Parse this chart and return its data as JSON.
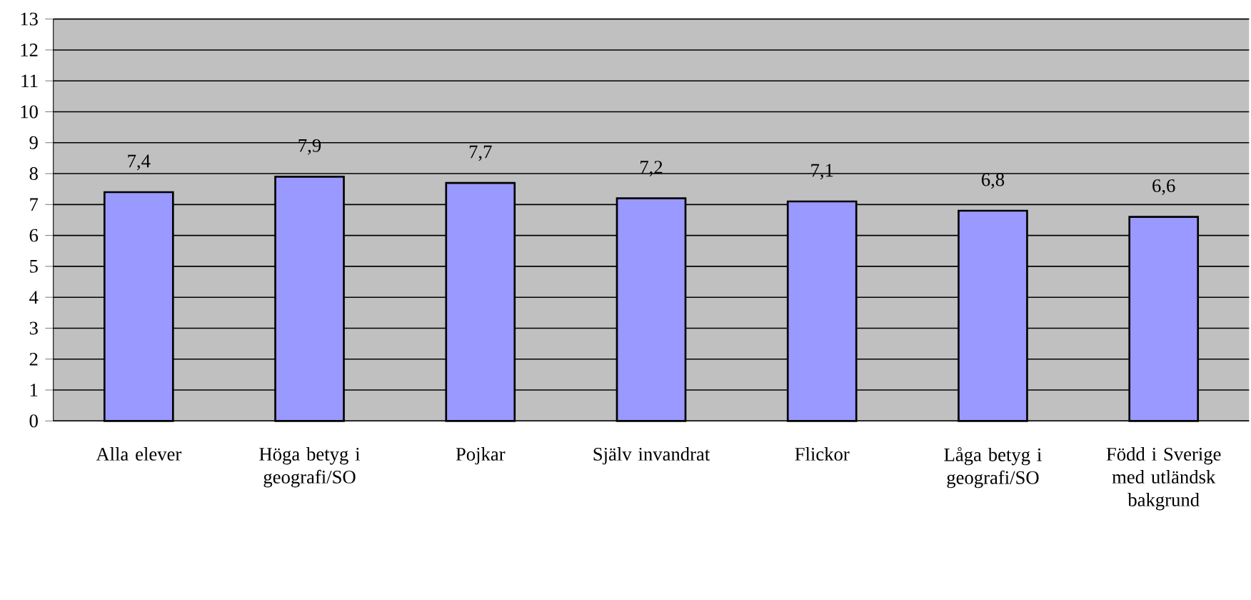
{
  "chart_data": {
    "type": "bar",
    "categories": [
      "Alla elever",
      "Höga betyg i geografi/SO",
      "Pojkar",
      "Själv invandrat",
      "Flickor",
      "Låga betyg i geografi/SO",
      "Född i Sverige med utländsk bakgrund"
    ],
    "values": [
      7.4,
      7.9,
      7.7,
      7.2,
      7.1,
      6.8,
      6.6
    ],
    "value_labels": [
      "7,4",
      "7,9",
      "7,7",
      "7,2",
      "7,1",
      "6,8",
      "6,6"
    ],
    "color": "#9999ff",
    "ylim": [
      0,
      13
    ],
    "yticks": [
      0,
      1,
      2,
      3,
      4,
      5,
      6,
      7,
      8,
      9,
      10,
      11,
      12,
      13
    ],
    "grid": "y"
  }
}
